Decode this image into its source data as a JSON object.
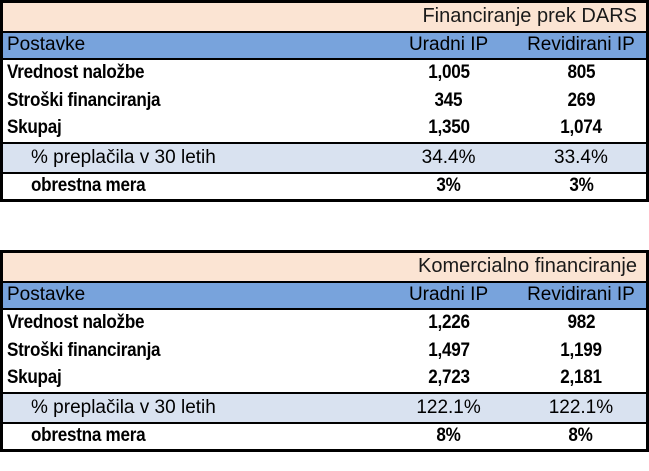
{
  "colors": {
    "title_bg": "#FBE4D3",
    "header_bg": "#78A3DC",
    "highlight_bg": "#D9E2F0",
    "border": "#000000",
    "text": "#000000"
  },
  "chart_data": [
    {
      "type": "table",
      "title": "Financiranje prek DARS",
      "columns": [
        "Postavke",
        "Uradni IP",
        "Revidirani IP"
      ],
      "rows": [
        [
          "Vrednost naložbe",
          "1,005",
          "805"
        ],
        [
          "Stroški financiranja",
          "345",
          "269"
        ],
        [
          "Skupaj",
          "1,350",
          "1,074"
        ],
        [
          "% preplačila v 30 letih",
          "34.4%",
          "33.4%"
        ],
        [
          "obrestna mera",
          "3%",
          "3%"
        ]
      ],
      "layout_hints": {
        "title_align": "right",
        "value_align": "center",
        "highlight_row_index": 3,
        "bold_rows": [
          0,
          1,
          2,
          4
        ]
      }
    },
    {
      "type": "table",
      "title": "Komercialno financiranje",
      "columns": [
        "Postavke",
        "Uradni IP",
        "Revidirani IP"
      ],
      "rows": [
        [
          "Vrednost naložbe",
          "1,226",
          "982"
        ],
        [
          "Stroški financiranja",
          "1,497",
          "1,199"
        ],
        [
          "Skupaj",
          "2,723",
          "2,181"
        ],
        [
          "% preplačila v 30 letih",
          "122.1%",
          "122.1%"
        ],
        [
          "obrestna mera",
          "8%",
          "8%"
        ]
      ],
      "layout_hints": {
        "title_align": "right",
        "value_align": "center",
        "highlight_row_index": 3,
        "bold_rows": [
          0,
          1,
          2,
          4
        ]
      }
    }
  ]
}
